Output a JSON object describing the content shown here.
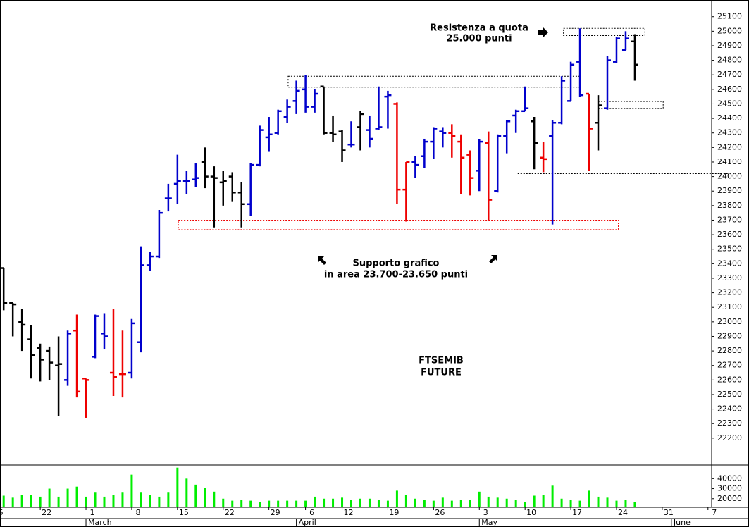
{
  "chart_data": [
    {
      "type": "ohlc",
      "xlim": [
        -0.4,
        77.4
      ],
      "ylim": [
        22015,
        25215
      ],
      "yticks": [
        22200,
        22300,
        22400,
        22500,
        22600,
        22700,
        22800,
        22900,
        23000,
        23100,
        23200,
        23300,
        23400,
        23500,
        23600,
        23700,
        23800,
        23900,
        24000,
        24100,
        24200,
        24300,
        24400,
        24500,
        24600,
        24700,
        24800,
        24900,
        25000,
        25100
      ],
      "open": [
        23370,
        23130,
        23000,
        22880,
        22820,
        22800,
        22700,
        22600,
        22940,
        22610,
        22760,
        22920,
        22650,
        22640,
        22650,
        22860,
        23390,
        23450,
        23850,
        23950,
        23970,
        23980,
        24100,
        24000,
        23960,
        24000,
        23890,
        23810,
        24080,
        24270,
        24300,
        24410,
        24520,
        24600,
        24480,
        24620,
        24300,
        24310,
        24220,
        24340,
        24320,
        24330,
        24550,
        24500,
        23910,
        24100,
        24140,
        24240,
        24310,
        24300,
        24240,
        24150,
        24040,
        24230,
        23900,
        24280,
        24420,
        24450,
        24380,
        24130,
        24280,
        24370,
        24520,
        24790,
        24570,
        24370,
        24470,
        24790,
        24870,
        24930
      ],
      "high": [
        23370,
        23130,
        23090,
        22980,
        22850,
        22830,
        22900,
        22940,
        23050,
        22610,
        23050,
        23060,
        23090,
        22940,
        23020,
        23520,
        23480,
        23770,
        23950,
        24150,
        24040,
        24090,
        24200,
        24070,
        24040,
        24030,
        23960,
        24090,
        24350,
        24410,
        24460,
        24530,
        24660,
        24700,
        24600,
        24620,
        24420,
        24320,
        24380,
        24450,
        24420,
        24620,
        24590,
        24510,
        24100,
        24140,
        24260,
        24340,
        24340,
        24360,
        24290,
        24180,
        24260,
        24310,
        24290,
        24390,
        24460,
        24620,
        24410,
        24240,
        24390,
        24690,
        24790,
        25020,
        24570,
        24560,
        24830,
        24960,
        25000,
        24980
      ],
      "low": [
        23080,
        22900,
        22800,
        22610,
        22590,
        22600,
        22350,
        22560,
        22480,
        22340,
        22750,
        22810,
        22490,
        22480,
        22610,
        22790,
        23350,
        23440,
        23760,
        23810,
        23880,
        23930,
        23920,
        23650,
        23800,
        23830,
        23650,
        23730,
        24070,
        24170,
        24290,
        24370,
        24430,
        24440,
        24440,
        24290,
        24240,
        24100,
        24200,
        24180,
        24200,
        24320,
        24330,
        23810,
        23690,
        23990,
        24060,
        24120,
        24200,
        24130,
        23880,
        23870,
        23900,
        23700,
        23890,
        24160,
        24300,
        24450,
        24050,
        24030,
        23670,
        24360,
        24520,
        24550,
        24040,
        24180,
        24460,
        24780,
        24870,
        24660
      ],
      "close": [
        23130,
        23120,
        22980,
        22770,
        22740,
        22720,
        22710,
        22920,
        22520,
        22600,
        23040,
        22900,
        22620,
        22640,
        22990,
        23390,
        23450,
        23750,
        23850,
        23970,
        23970,
        23990,
        24000,
        23990,
        23970,
        23890,
        23810,
        24080,
        24320,
        24290,
        24450,
        24480,
        24590,
        24480,
        24570,
        24300,
        24290,
        24180,
        24220,
        24430,
        24260,
        24340,
        24560,
        23910,
        24100,
        24080,
        24240,
        24330,
        24300,
        24280,
        24130,
        23990,
        24240,
        23840,
        24280,
        24380,
        24450,
        24470,
        24230,
        24120,
        24370,
        24660,
        24770,
        24560,
        24330,
        24490,
        24800,
        24950,
        24950,
        24770
      ],
      "colors": [
        "#000000",
        "#000000",
        "#000000",
        "#000000",
        "#000000",
        "#000000",
        "#000000",
        "#0000cc",
        "#ee0000",
        "#ee0000",
        "#0000cc",
        "#0000cc",
        "#ee0000",
        "#ee0000",
        "#0000cc",
        "#0000cc",
        "#0000cc",
        "#0000cc",
        "#0000cc",
        "#0000cc",
        "#0000cc",
        "#0000cc",
        "#000000",
        "#000000",
        "#000000",
        "#000000",
        "#000000",
        "#0000cc",
        "#0000cc",
        "#0000cc",
        "#0000cc",
        "#0000cc",
        "#0000cc",
        "#0000cc",
        "#0000cc",
        "#000000",
        "#000000",
        "#000000",
        "#0000cc",
        "#000000",
        "#0000cc",
        "#0000cc",
        "#0000cc",
        "#ee0000",
        "#ee0000",
        "#0000cc",
        "#0000cc",
        "#0000cc",
        "#0000cc",
        "#ee0000",
        "#ee0000",
        "#ee0000",
        "#0000cc",
        "#ee0000",
        "#0000cc",
        "#0000cc",
        "#0000cc",
        "#0000cc",
        "#000000",
        "#ee0000",
        "#0000cc",
        "#0000cc",
        "#0000cc",
        "#0000cc",
        "#ee0000",
        "#000000",
        "#0000cc",
        "#0000cc",
        "#0000cc",
        "#000000"
      ],
      "zones": [
        {
          "x": [
            61.2,
            70.1
          ],
          "y": [
            24970,
            25020
          ],
          "color": "#000000"
        },
        {
          "x": [
            31.1,
            63.1
          ],
          "y": [
            24615,
            24690
          ],
          "color": "#000000"
        },
        {
          "x": [
            19.1,
            67.2
          ],
          "y": [
            23635,
            23700
          ],
          "color": "#ee0000"
        },
        {
          "x": [
            65.0,
            72.1
          ],
          "y": [
            24469,
            24517
          ],
          "color": "#000000"
        }
      ],
      "levels": [
        {
          "x": [
            56.2,
            79.2
          ],
          "y": 24020,
          "color": "#000000"
        }
      ],
      "annotations": [
        "Resistenza a quota",
        "25.000 punti",
        "Supporto grafico",
        "in area 23.700-23.650 punti",
        "FTSEMIB",
        "FUTURE"
      ]
    },
    {
      "type": "bar",
      "xlim": [
        -0.4,
        77.4
      ],
      "ylim": [
        12100,
        53600
      ],
      "yticks": [
        20000,
        30000,
        40000
      ],
      "color": "#00ee00",
      "values": [
        23000,
        21000,
        24000,
        24000,
        22000,
        30000,
        22000,
        30000,
        32000,
        22000,
        26000,
        22000,
        24000,
        26000,
        44000,
        26000,
        24000,
        22000,
        26000,
        51000,
        40000,
        34000,
        31000,
        27000,
        20000,
        18000,
        19000,
        18000,
        17000,
        18000,
        18000,
        18000,
        18000,
        18000,
        22000,
        20000,
        20000,
        21000,
        19000,
        20000,
        20000,
        19000,
        18000,
        28000,
        24000,
        20000,
        19000,
        18000,
        21000,
        18000,
        19000,
        19000,
        27000,
        22000,
        21000,
        20000,
        19000,
        17000,
        23000,
        24000,
        33000,
        20000,
        19000,
        18000,
        28000,
        22000,
        21000,
        18000,
        19000,
        17000
      ],
      "xticks": [
        {
          "value": -1,
          "label": "5"
        },
        {
          "value": 4,
          "label": "22"
        },
        {
          "value": 9,
          "label": "1"
        },
        {
          "value": 14,
          "label": "8"
        },
        {
          "value": 19,
          "label": "15"
        },
        {
          "value": 24,
          "label": "22"
        },
        {
          "value": 29,
          "label": "29"
        },
        {
          "value": 33,
          "label": "6"
        },
        {
          "value": 37,
          "label": "12"
        },
        {
          "value": 42,
          "label": "19"
        },
        {
          "value": 47,
          "label": "26"
        },
        {
          "value": 52,
          "label": "3"
        },
        {
          "value": 57,
          "label": "10"
        },
        {
          "value": 62,
          "label": "17"
        },
        {
          "value": 67,
          "label": "24"
        },
        {
          "value": 72,
          "label": "31"
        },
        {
          "value": 77,
          "label": "7"
        }
      ],
      "month_ticks": [
        {
          "value": 9,
          "label": "March"
        },
        {
          "value": 32,
          "label": "April"
        },
        {
          "value": 52,
          "label": "May"
        },
        {
          "value": 73,
          "label": "June"
        }
      ]
    }
  ]
}
